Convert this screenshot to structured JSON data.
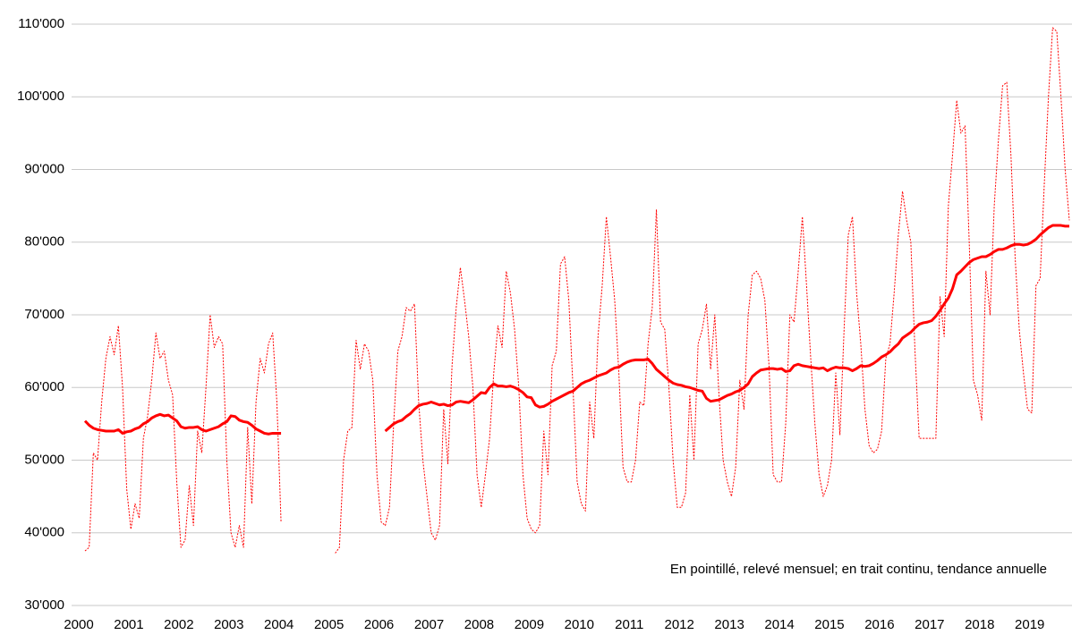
{
  "chart_data": {
    "type": "line",
    "annotation": "En pointillé, relevé mensuel; en trait continu, tendance annuelle",
    "categories": [
      "2000",
      null,
      null,
      null,
      null,
      null,
      null,
      null,
      null,
      null,
      null,
      null,
      "2001",
      null,
      null,
      null,
      null,
      null,
      null,
      null,
      null,
      null,
      null,
      null,
      "2002",
      null,
      null,
      null,
      null,
      null,
      null,
      null,
      null,
      null,
      null,
      null,
      "2003",
      null,
      null,
      null,
      null,
      null,
      null,
      null,
      null,
      null,
      null,
      null,
      "2004",
      null,
      null,
      null,
      null,
      null,
      null,
      null,
      null,
      null,
      null,
      null,
      "2005",
      null,
      null,
      null,
      null,
      null,
      null,
      null,
      null,
      null,
      null,
      null,
      "2006",
      null,
      null,
      null,
      null,
      null,
      null,
      null,
      null,
      null,
      null,
      null,
      "2007",
      null,
      null,
      null,
      null,
      null,
      null,
      null,
      null,
      null,
      null,
      null,
      "2008",
      null,
      null,
      null,
      null,
      null,
      null,
      null,
      null,
      null,
      null,
      null,
      "2009",
      null,
      null,
      null,
      null,
      null,
      null,
      null,
      null,
      null,
      null,
      null,
      "2010",
      null,
      null,
      null,
      null,
      null,
      null,
      null,
      null,
      null,
      null,
      null,
      "2011",
      null,
      null,
      null,
      null,
      null,
      null,
      null,
      null,
      null,
      null,
      null,
      "2012",
      null,
      null,
      null,
      null,
      null,
      null,
      null,
      null,
      null,
      null,
      null,
      "2013",
      null,
      null,
      null,
      null,
      null,
      null,
      null,
      null,
      null,
      null,
      null,
      "2014",
      null,
      null,
      null,
      null,
      null,
      null,
      null,
      null,
      null,
      null,
      null,
      "2015",
      null,
      null,
      null,
      null,
      null,
      null,
      null,
      null,
      null,
      null,
      null,
      "2016",
      null,
      null,
      null,
      null,
      null,
      null,
      null,
      null,
      null,
      null,
      null,
      "2017",
      null,
      null,
      null,
      null,
      null,
      null,
      null,
      null,
      null,
      null,
      null,
      "2018",
      null,
      null,
      null,
      null,
      null,
      null,
      null,
      null,
      null,
      null,
      null,
      "2019",
      null,
      null,
      null,
      null,
      null,
      null,
      null,
      null
    ],
    "series": [
      {
        "color": "#ff0000",
        "style": "dotted",
        "values": [
          37500,
          38000,
          51000,
          50000,
          58000,
          64000,
          67000,
          64500,
          68500,
          60000,
          46000,
          40500,
          44000,
          42000,
          53000,
          56000,
          61000,
          67500,
          64000,
          65000,
          61000,
          59000,
          47000,
          38000,
          39000,
          46500,
          41000,
          54000,
          51000,
          60000,
          70000,
          65500,
          67000,
          66000,
          50000,
          40000,
          38000,
          41000,
          38000,
          54500,
          44000,
          58000,
          64000,
          62000,
          66000,
          67500,
          58000,
          41500,
          null,
          null,
          null,
          null,
          null,
          null,
          null,
          null,
          null,
          null,
          null,
          null,
          37200,
          38000,
          50000,
          54000,
          54500,
          66500,
          62500,
          66000,
          65000,
          61000,
          48000,
          41500,
          41000,
          43500,
          55000,
          65000,
          67000,
          71000,
          70500,
          71500,
          58000,
          50000,
          45000,
          40000,
          39000,
          41000,
          57000,
          49500,
          63000,
          71000,
          76500,
          72000,
          67000,
          60000,
          48000,
          43500,
          48000,
          53000,
          62000,
          68500,
          65500,
          76000,
          73000,
          68000,
          60000,
          48000,
          42000,
          40500,
          40000,
          41000,
          54000,
          48000,
          63000,
          65000,
          77000,
          78000,
          72000,
          60000,
          47000,
          44000,
          43000,
          58000,
          53000,
          67000,
          74000,
          83500,
          78000,
          72000,
          62000,
          49000,
          47000,
          47000,
          50000,
          58000,
          57500,
          66000,
          71000,
          84500,
          69000,
          68000,
          60000,
          50000,
          43500,
          43500,
          45500,
          59000,
          50000,
          66000,
          68000,
          71500,
          62500,
          70000,
          59000,
          50000,
          47000,
          45000,
          49000,
          61000,
          57000,
          70000,
          75500,
          76000,
          75000,
          72000,
          63000,
          48000,
          47000,
          47000,
          55000,
          70000,
          69000,
          76000,
          83500,
          74000,
          64000,
          55000,
          48000,
          45000,
          46500,
          50000,
          62000,
          53500,
          68000,
          81000,
          83500,
          73000,
          66000,
          57000,
          52000,
          51000,
          51500,
          54000,
          64000,
          66000,
          73000,
          81000,
          87000,
          83000,
          80000,
          65000,
          53000,
          53000,
          53000,
          53000,
          53000,
          72500,
          67000,
          85000,
          92000,
          99500,
          95000,
          96000,
          80000,
          61000,
          59000,
          55500,
          76000,
          70000,
          85000,
          94000,
          101500,
          102000,
          92000,
          78000,
          68000,
          62000,
          57000,
          56500,
          74000,
          75000,
          88000,
          100000,
          109500,
          109000,
          100000,
          90000,
          83000
        ]
      },
      {
        "color": "#ff0000",
        "style": "solid",
        "values": [
          55400,
          54800,
          54400,
          54200,
          54100,
          54000,
          54000,
          54000,
          54200,
          53700,
          53900,
          54000,
          54300,
          54500,
          55000,
          55300,
          55800,
          56100,
          56300,
          56100,
          56200,
          55800,
          55400,
          54600,
          54400,
          54500,
          54500,
          54600,
          54200,
          54000,
          54200,
          54400,
          54600,
          55000,
          55300,
          56100,
          56000,
          55500,
          55300,
          55200,
          54800,
          54300,
          54000,
          53700,
          53600,
          53700,
          53700,
          53700,
          null,
          null,
          null,
          null,
          null,
          null,
          null,
          null,
          null,
          null,
          null,
          null,
          null,
          null,
          null,
          null,
          null,
          null,
          null,
          null,
          null,
          null,
          null,
          null,
          54000,
          54500,
          55000,
          55300,
          55500,
          56000,
          56400,
          57000,
          57500,
          57700,
          57800,
          58000,
          57800,
          57600,
          57700,
          57500,
          57600,
          58000,
          58100,
          58000,
          57900,
          58300,
          58800,
          59300,
          59200,
          60000,
          60500,
          60200,
          60200,
          60100,
          60200,
          60000,
          59700,
          59300,
          58700,
          58600,
          57600,
          57300,
          57400,
          57700,
          58100,
          58400,
          58700,
          59000,
          59300,
          59500,
          60000,
          60500,
          60800,
          61000,
          61300,
          61600,
          61800,
          62000,
          62400,
          62700,
          62800,
          63200,
          63500,
          63700,
          63800,
          63800,
          63800,
          63900,
          63300,
          62500,
          62000,
          61500,
          61000,
          60600,
          60400,
          60300,
          60100,
          60000,
          59800,
          59600,
          59500,
          58500,
          58100,
          58200,
          58300,
          58600,
          58900,
          59100,
          59400,
          59600,
          60000,
          60500,
          61500,
          62000,
          62400,
          62500,
          62600,
          62600,
          62500,
          62600,
          62200,
          62300,
          63000,
          63200,
          63000,
          62900,
          62800,
          62700,
          62600,
          62700,
          62300,
          62600,
          62800,
          62700,
          62700,
          62600,
          62300,
          62600,
          63000,
          62900,
          63000,
          63300,
          63700,
          64200,
          64500,
          64900,
          65500,
          66000,
          66800,
          67200,
          67600,
          68200,
          68700,
          68900,
          69000,
          69200,
          69800,
          70600,
          71500,
          72300,
          73600,
          75500,
          76000,
          76600,
          77200,
          77600,
          77800,
          78000,
          78000,
          78300,
          78700,
          79000,
          79000,
          79200,
          79500,
          79700,
          79700,
          79600,
          79700,
          80000,
          80400,
          81000,
          81500,
          82000,
          82300,
          82300,
          82300,
          82200,
          82200
        ]
      }
    ],
    "ylim": [
      30000,
      110000
    ],
    "yticks": [
      {
        "value": 30000,
        "label": "30'000"
      },
      {
        "value": 40000,
        "label": "40'000"
      },
      {
        "value": 50000,
        "label": "50'000"
      },
      {
        "value": 60000,
        "label": "60'000"
      },
      {
        "value": 70000,
        "label": "70'000"
      },
      {
        "value": 80000,
        "label": "80'000"
      },
      {
        "value": 90000,
        "label": "90'000"
      },
      {
        "value": 100000,
        "label": "100'000"
      },
      {
        "value": 110000,
        "label": "110'000"
      }
    ],
    "grid": true
  }
}
